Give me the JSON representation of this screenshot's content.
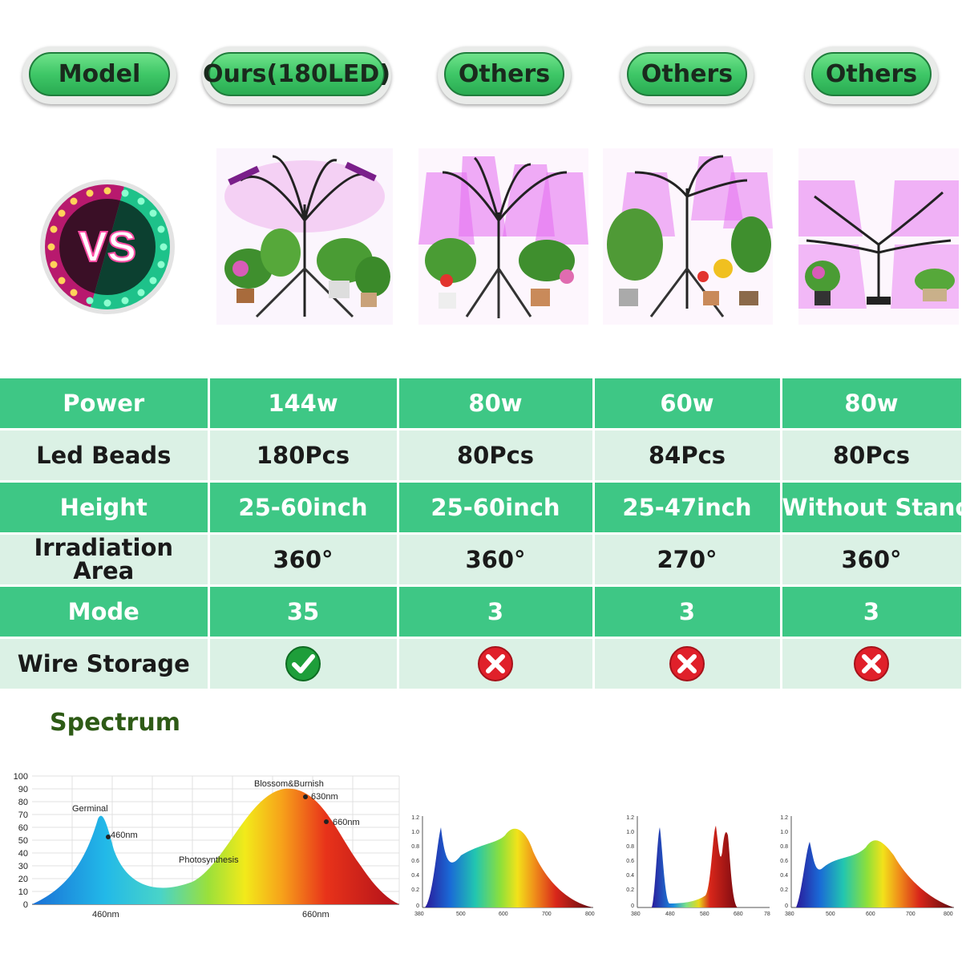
{
  "header": {
    "pills": [
      "Model",
      "Ours(180LED)",
      "Others",
      "Others",
      "Others"
    ]
  },
  "vs_badge": {
    "text": "VS"
  },
  "table": {
    "rows": [
      {
        "label": "Power",
        "values": [
          "144w",
          "80w",
          "60w",
          "80w"
        ]
      },
      {
        "label": "Led Beads",
        "values": [
          "180Pcs",
          "80Pcs",
          "84Pcs",
          "80Pcs"
        ]
      },
      {
        "label": "Height",
        "values": [
          "25-60inch",
          "25-60inch",
          "25-47inch",
          "Without Stand"
        ]
      },
      {
        "label_line1": "Irradiation",
        "label_line2": "Area",
        "values": [
          "360°",
          "360°",
          "270°",
          "360°"
        ]
      },
      {
        "label": "Mode",
        "values": [
          "35",
          "3",
          "3",
          "3"
        ]
      },
      {
        "label": "Wire Storage",
        "icons": [
          "check-icon",
          "cross-icon",
          "cross-icon",
          "cross-icon"
        ]
      }
    ]
  },
  "spectrum": {
    "title": "Spectrum",
    "main_chart": {
      "yticks": [
        "100",
        "90",
        "80",
        "70",
        "60",
        "50",
        "40",
        "30",
        "20",
        "10",
        "0"
      ],
      "xticks": [
        "460nm",
        "660nm"
      ],
      "annotations": [
        "Germinal",
        "460nm",
        "Photosynthesis",
        "Blossom&Burnish",
        "630nm",
        "660nm"
      ]
    },
    "small_charts": [
      {
        "yticks": [
          "1.2",
          "1.0",
          "0.8",
          "0.6",
          "0.4",
          "0.2",
          "0"
        ],
        "xticks": [
          "380",
          "500",
          "600",
          "700",
          "800"
        ]
      },
      {
        "yticks": [
          "1.2",
          "1.0",
          "0.8",
          "0.6",
          "0.4",
          "0.2",
          "0"
        ],
        "xticks": [
          "380",
          "480",
          "580",
          "680",
          "78"
        ]
      },
      {
        "yticks": [
          "1.2",
          "1.0",
          "0.8",
          "0.6",
          "0.4",
          "0.2",
          "0"
        ],
        "xticks": [
          "380",
          "500",
          "600",
          "700",
          "800"
        ]
      }
    ]
  },
  "colors": {
    "table_green": "#3ec785",
    "table_light": "#dbf1e5",
    "check": "#1e9e3a",
    "cross": "#e0202a"
  }
}
